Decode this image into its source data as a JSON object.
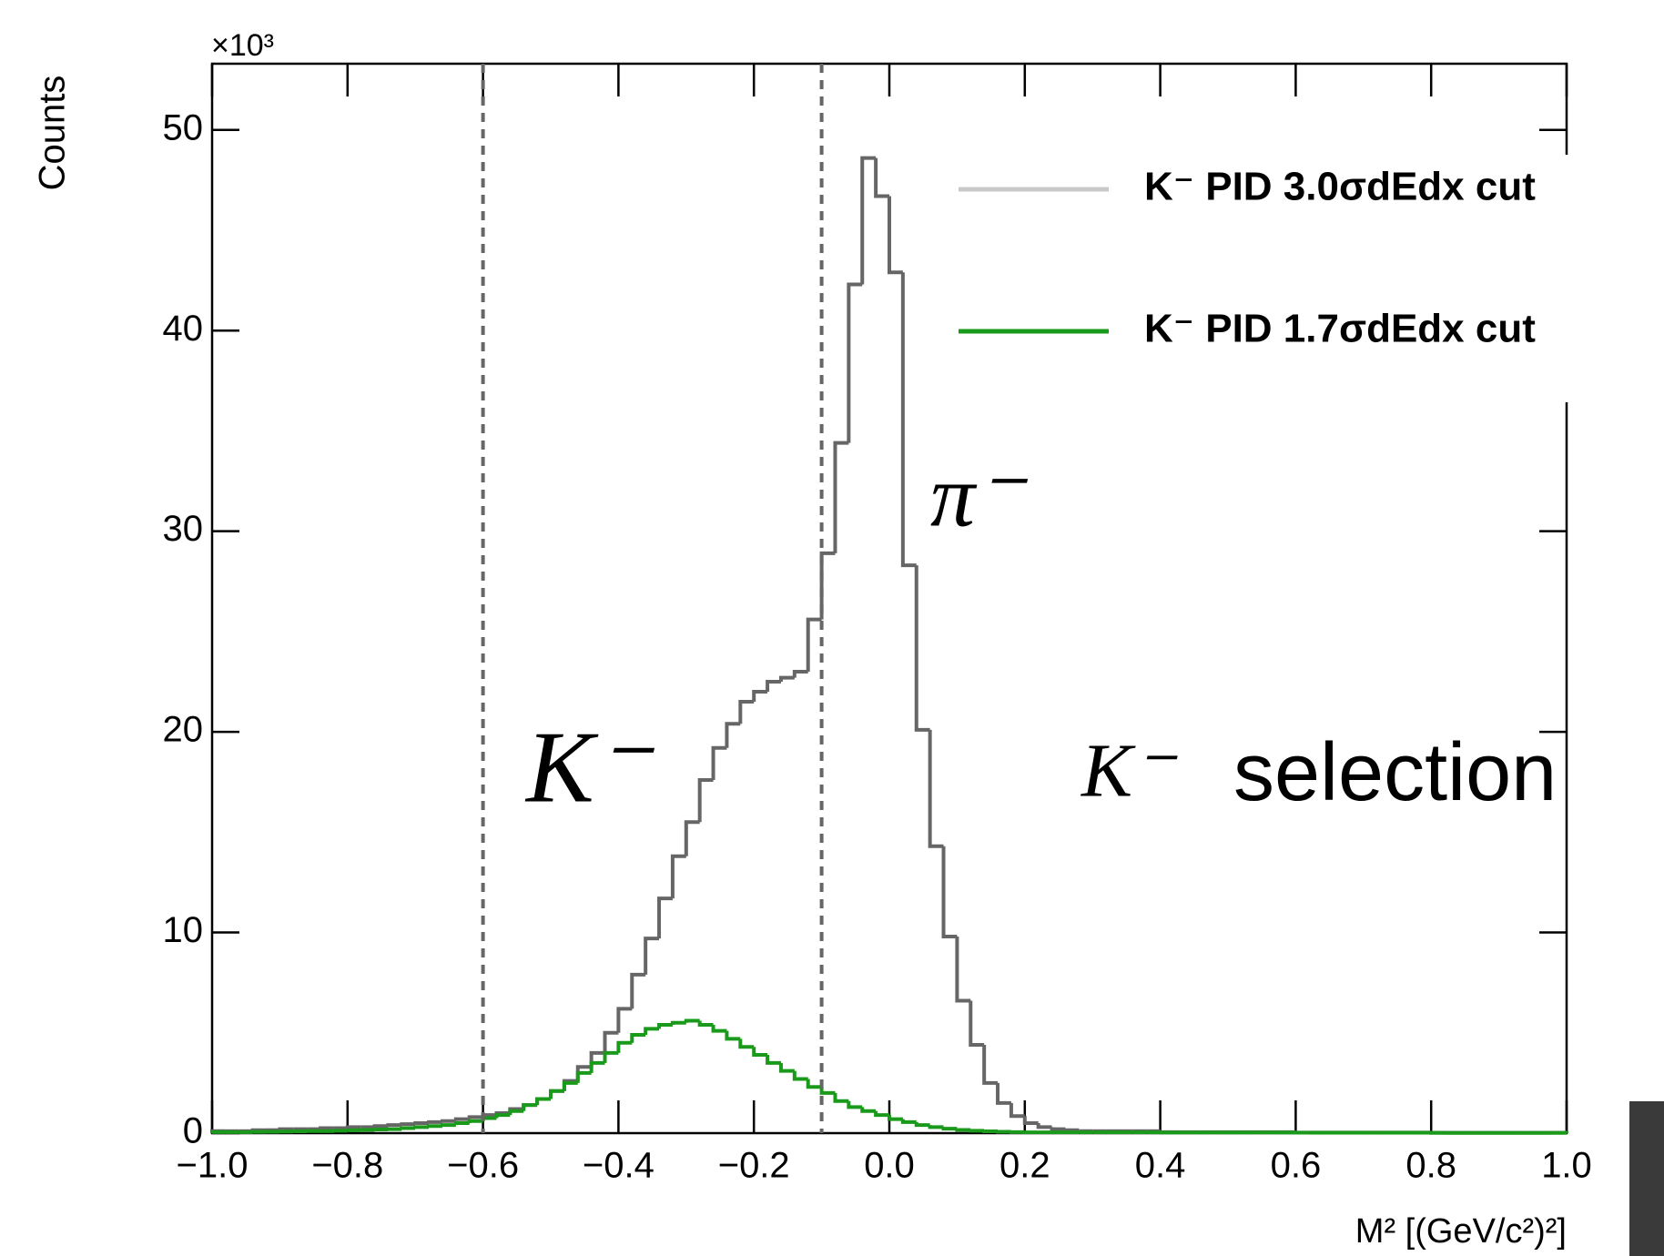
{
  "chart_data": {
    "type": "histogram",
    "y_label": "Counts",
    "y_exponent": "×10³",
    "x_label": "M² [(GeV/c²)²]",
    "bins": [
      -1.0,
      -0.98,
      -0.96,
      -0.94,
      -0.92,
      -0.9,
      -0.88,
      -0.86,
      -0.84,
      -0.82,
      -0.8,
      -0.78,
      -0.76,
      -0.74,
      -0.72,
      -0.7,
      -0.68,
      -0.66,
      -0.64,
      -0.62,
      -0.6,
      -0.58,
      -0.56,
      -0.54,
      -0.52,
      -0.5,
      -0.48,
      -0.46,
      -0.44,
      -0.42,
      -0.4,
      -0.38,
      -0.36,
      -0.34,
      -0.32,
      -0.3,
      -0.28,
      -0.26,
      -0.24,
      -0.22,
      -0.2,
      -0.18,
      -0.16,
      -0.14,
      -0.12,
      -0.1,
      -0.08,
      -0.06,
      -0.04,
      -0.02,
      0.0,
      0.02,
      0.04,
      0.06,
      0.08,
      0.1,
      0.12,
      0.14,
      0.16,
      0.18,
      0.2,
      0.22,
      0.24,
      0.26,
      0.28,
      0.3,
      0.32,
      0.34,
      0.36,
      0.38,
      0.4,
      0.42,
      0.44,
      0.46,
      0.48,
      0.5,
      0.52,
      0.54,
      0.56,
      0.58,
      0.6,
      0.62,
      0.64,
      0.66,
      0.68,
      0.7,
      0.72,
      0.74,
      0.76,
      0.78,
      0.8,
      0.82,
      0.84,
      0.86,
      0.88,
      0.9,
      0.92,
      0.94,
      0.96,
      0.98,
      1.0
    ],
    "series": [
      {
        "name": "K⁻ PID 3.0σdEdx cut",
        "color": "#666666",
        "legend_color": "#c8c8c8",
        "values": [
          0.1,
          0.1,
          0.1,
          0.15,
          0.15,
          0.2,
          0.2,
          0.2,
          0.25,
          0.25,
          0.3,
          0.3,
          0.35,
          0.4,
          0.45,
          0.5,
          0.55,
          0.6,
          0.7,
          0.8,
          0.9,
          1.0,
          1.2,
          1.4,
          1.7,
          2.1,
          2.6,
          3.3,
          4.0,
          5.0,
          6.2,
          7.9,
          9.7,
          11.7,
          13.8,
          15.5,
          17.6,
          19.2,
          20.4,
          21.5,
          22.0,
          22.5,
          22.7,
          23.0,
          25.6,
          28.9,
          34.4,
          42.3,
          48.6,
          46.7,
          42.9,
          28.3,
          20.1,
          14.3,
          9.8,
          6.6,
          4.4,
          2.5,
          1.5,
          0.85,
          0.5,
          0.3,
          0.2,
          0.15,
          0.1,
          0.1,
          0.1,
          0.1,
          0.1,
          0.1,
          0.05,
          0.05,
          0.05,
          0.05,
          0.05,
          0.05,
          0.05,
          0.05,
          0.05,
          0.05,
          0.03,
          0.03,
          0.03,
          0.03,
          0.03,
          0.03,
          0.03,
          0.03,
          0.03,
          0.03,
          0.02,
          0.02,
          0.02,
          0.02,
          0.02,
          0.02,
          0.02,
          0.02,
          0.02,
          0.02
        ]
      },
      {
        "name": "K⁻ PID 1.7σdEdx cut",
        "color": "#1a9a1a",
        "legend_color": "#1a9a1a",
        "values": [
          0.05,
          0.05,
          0.05,
          0.06,
          0.07,
          0.08,
          0.09,
          0.1,
          0.1,
          0.12,
          0.14,
          0.16,
          0.18,
          0.2,
          0.25,
          0.3,
          0.35,
          0.4,
          0.5,
          0.6,
          0.75,
          0.9,
          1.1,
          1.4,
          1.7,
          2.1,
          2.5,
          3.0,
          3.5,
          4.0,
          4.5,
          4.9,
          5.2,
          5.4,
          5.5,
          5.6,
          5.4,
          5.1,
          4.7,
          4.3,
          3.9,
          3.5,
          3.1,
          2.7,
          2.3,
          2.0,
          1.6,
          1.3,
          1.1,
          0.9,
          0.7,
          0.55,
          0.4,
          0.3,
          0.22,
          0.16,
          0.12,
          0.09,
          0.07,
          0.05,
          0.04,
          0.04,
          0.04,
          0.04,
          0.04,
          0.04,
          0.04,
          0.04,
          0.04,
          0.04,
          0.03,
          0.03,
          0.03,
          0.03,
          0.03,
          0.03,
          0.03,
          0.03,
          0.03,
          0.03,
          0.02,
          0.02,
          0.02,
          0.02,
          0.02,
          0.02,
          0.02,
          0.02,
          0.02,
          0.02,
          0.01,
          0.01,
          0.01,
          0.01,
          0.01,
          0.01,
          0.01,
          0.01,
          0.01,
          0.01
        ]
      }
    ],
    "xlim": [
      -1.0,
      1.0
    ],
    "ylim": [
      0,
      53.3
    ],
    "xticks": [
      {
        "value": -1.0,
        "label": "−1.0"
      },
      {
        "value": -0.8,
        "label": "−0.8"
      },
      {
        "value": -0.6,
        "label": "−0.6"
      },
      {
        "value": -0.4,
        "label": "−0.4"
      },
      {
        "value": -0.2,
        "label": "−0.2"
      },
      {
        "value": 0.0,
        "label": "0.0"
      },
      {
        "value": 0.2,
        "label": "0.2"
      },
      {
        "value": 0.4,
        "label": "0.4"
      },
      {
        "value": 0.6,
        "label": "0.6"
      },
      {
        "value": 0.8,
        "label": "0.8"
      },
      {
        "value": 1.0,
        "label": "1.0"
      }
    ],
    "yticks": [
      0,
      10,
      20,
      30,
      40,
      50
    ],
    "cut_lines": [
      -0.6,
      -0.1
    ],
    "annotations": [
      {
        "text": "K⁻",
        "color": "#000000"
      },
      {
        "text": "π⁻",
        "color": "#000000"
      },
      {
        "text": "K⁻",
        "color": "#ff3300"
      },
      {
        "text": "selection",
        "color": "#ff3300"
      }
    ]
  }
}
